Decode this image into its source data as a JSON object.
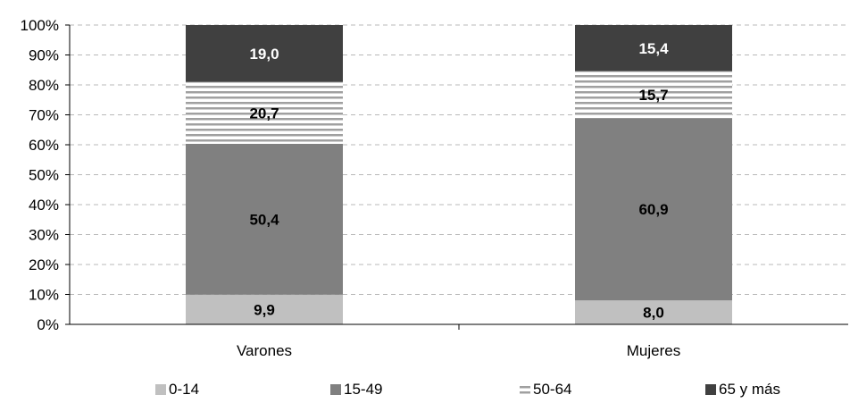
{
  "chart_data": {
    "type": "bar",
    "stacked": true,
    "percent": true,
    "categories": [
      "Varones",
      "Mujeres"
    ],
    "series": [
      {
        "name": "0-14",
        "values": [
          9.9,
          8.0
        ],
        "labels": [
          "9,9",
          "8,0"
        ],
        "color": "#c0c0c0",
        "pattern": "solid",
        "label_color": "#000000"
      },
      {
        "name": "15-49",
        "values": [
          50.4,
          60.9
        ],
        "labels": [
          "50,4",
          "60,9"
        ],
        "color": "#808080",
        "pattern": "solid",
        "label_color": "#000000"
      },
      {
        "name": "50-64",
        "values": [
          20.7,
          15.7
        ],
        "labels": [
          "20,7",
          "15,7"
        ],
        "color": "#a0a0a0",
        "pattern": "horizontal-stripes",
        "label_color": "#000000"
      },
      {
        "name": "65 y más",
        "values": [
          19.0,
          15.4
        ],
        "labels": [
          "19,0",
          "15,4"
        ],
        "color": "#404040",
        "pattern": "solid",
        "label_color": "#ffffff"
      }
    ],
    "yticks": [
      "0%",
      "10%",
      "20%",
      "30%",
      "40%",
      "50%",
      "60%",
      "70%",
      "80%",
      "90%",
      "100%"
    ],
    "ylim": [
      0,
      100
    ],
    "grid": true,
    "legend_position": "bottom"
  }
}
